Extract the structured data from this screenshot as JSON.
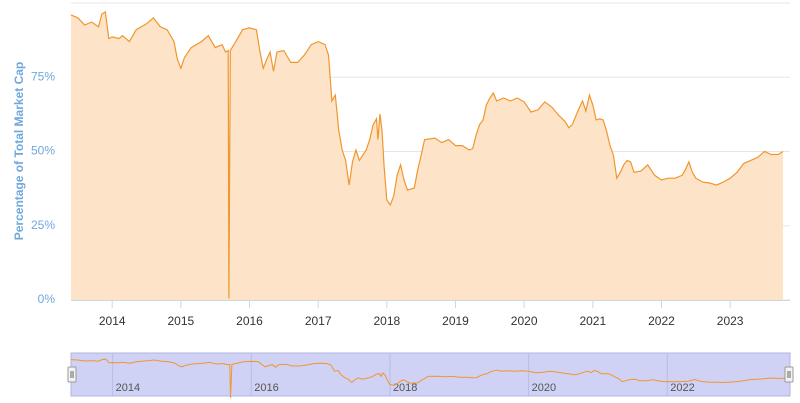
{
  "chart_data": {
    "type": "area",
    "y_axis_label": "Percentage of Total Market Cap",
    "x": [
      2013.4,
      2013.5,
      2013.6,
      2013.7,
      2013.8,
      2013.85,
      2013.9,
      2013.95,
      2014.0,
      2014.1,
      2014.15,
      2014.25,
      2014.35,
      2014.5,
      2014.6,
      2014.7,
      2014.8,
      2014.9,
      2014.95,
      2015.0,
      2015.05,
      2015.15,
      2015.3,
      2015.4,
      2015.5,
      2015.6,
      2015.65,
      2015.69,
      2015.7,
      2015.72,
      2015.8,
      2015.9,
      2016.0,
      2016.1,
      2016.15,
      2016.2,
      2016.25,
      2016.3,
      2016.35,
      2016.4,
      2016.5,
      2016.6,
      2016.7,
      2016.8,
      2016.9,
      2017.0,
      2017.1,
      2017.15,
      2017.2,
      2017.25,
      2017.3,
      2017.35,
      2017.4,
      2017.45,
      2017.5,
      2017.55,
      2017.6,
      2017.7,
      2017.75,
      2017.8,
      2017.85,
      2017.87,
      2017.9,
      2017.93,
      2017.96,
      2018.0,
      2018.05,
      2018.1,
      2018.15,
      2018.2,
      2018.25,
      2018.3,
      2018.4,
      2018.45,
      2018.5,
      2018.55,
      2018.7,
      2018.8,
      2018.9,
      2019.0,
      2019.1,
      2019.2,
      2019.25,
      2019.3,
      2019.35,
      2019.4,
      2019.45,
      2019.5,
      2019.55,
      2019.6,
      2019.7,
      2019.8,
      2019.9,
      2020.0,
      2020.1,
      2020.2,
      2020.3,
      2020.4,
      2020.5,
      2020.6,
      2020.65,
      2020.7,
      2020.8,
      2020.85,
      2020.9,
      2020.95,
      2021.0,
      2021.05,
      2021.1,
      2021.15,
      2021.2,
      2021.25,
      2021.3,
      2021.35,
      2021.4,
      2021.45,
      2021.5,
      2021.55,
      2021.6,
      2021.7,
      2021.8,
      2021.9,
      2022.0,
      2022.1,
      2022.2,
      2022.3,
      2022.35,
      2022.4,
      2022.45,
      2022.5,
      2022.6,
      2022.7,
      2022.8,
      2022.9,
      2023.0,
      2023.1,
      2023.2,
      2023.3,
      2023.4,
      2023.5,
      2023.6,
      2023.7,
      2023.77
    ],
    "series": [
      {
        "color": "#f0962e",
        "fill": "#fde4c9",
        "values": [
          96,
          95,
          92.6,
          93.6,
          92,
          96.3,
          97,
          88,
          88.6,
          88,
          89,
          87,
          91,
          93,
          95,
          92,
          91,
          87,
          81,
          78,
          81.5,
          85,
          87,
          89,
          85,
          86,
          83.5,
          84,
          0.5,
          84,
          87,
          91,
          91.6,
          91,
          84,
          78,
          81,
          83.5,
          77,
          83.5,
          84,
          80,
          80,
          82.5,
          86,
          87,
          86,
          82.5,
          67,
          69,
          57,
          50.5,
          47,
          38.7,
          46.5,
          50.5,
          47,
          50.5,
          54,
          59,
          61,
          54,
          62.6,
          57,
          45,
          33.7,
          32,
          35,
          42,
          45.5,
          40.4,
          37,
          37.7,
          43.8,
          48.8,
          54,
          54.5,
          53,
          54,
          52,
          52,
          50.5,
          51,
          55.5,
          59,
          60.6,
          65.7,
          68,
          69.7,
          67,
          68,
          67,
          68,
          66.7,
          63.3,
          64,
          66.7,
          65,
          62.3,
          60,
          58,
          59,
          64.6,
          67,
          63.6,
          69,
          65.7,
          60.6,
          61,
          60.6,
          57,
          52,
          48.8,
          41,
          43,
          45.5,
          47,
          46.5,
          43,
          43.4,
          45.5,
          42,
          40.4,
          41,
          41,
          42,
          44,
          46.5,
          43,
          41,
          39.7,
          39.4,
          38.7,
          39.7,
          41,
          43,
          46,
          47,
          48,
          50,
          49,
          49,
          50
        ]
      }
    ],
    "xlim": [
      2013.4,
      2023.77
    ],
    "xticks": [
      2014,
      2015,
      2016,
      2017,
      2018,
      2019,
      2020,
      2021,
      2022,
      2023
    ],
    "ylim": [
      0,
      100
    ],
    "yticks": [
      {
        "value": 0,
        "label": "0%"
      },
      {
        "value": 25,
        "label": "25%"
      },
      {
        "value": 50,
        "label": "50%"
      },
      {
        "value": 75,
        "label": "75%"
      },
      {
        "value": 100,
        "label": ""
      }
    ],
    "grid": true,
    "navigator": {
      "xticks": [
        2014,
        2016,
        2018,
        2020,
        2022
      ]
    }
  }
}
